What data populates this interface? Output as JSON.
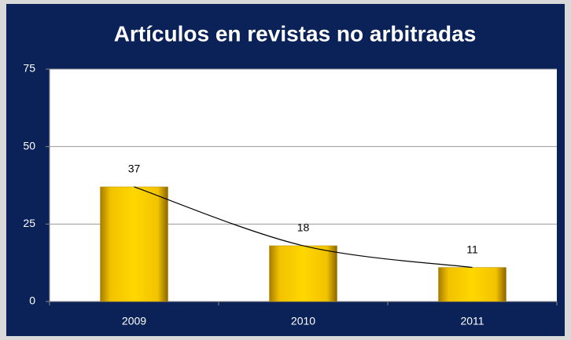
{
  "chart_data": {
    "type": "bar",
    "title": "Artículos en revistas no arbitradas",
    "categories": [
      "2009",
      "2010",
      "2011"
    ],
    "values": [
      37,
      18,
      11
    ],
    "color": "#ffd200",
    "ylim": [
      0,
      75
    ],
    "yticks": [
      0,
      25,
      50,
      75
    ],
    "grid": true,
    "trendline": true
  }
}
